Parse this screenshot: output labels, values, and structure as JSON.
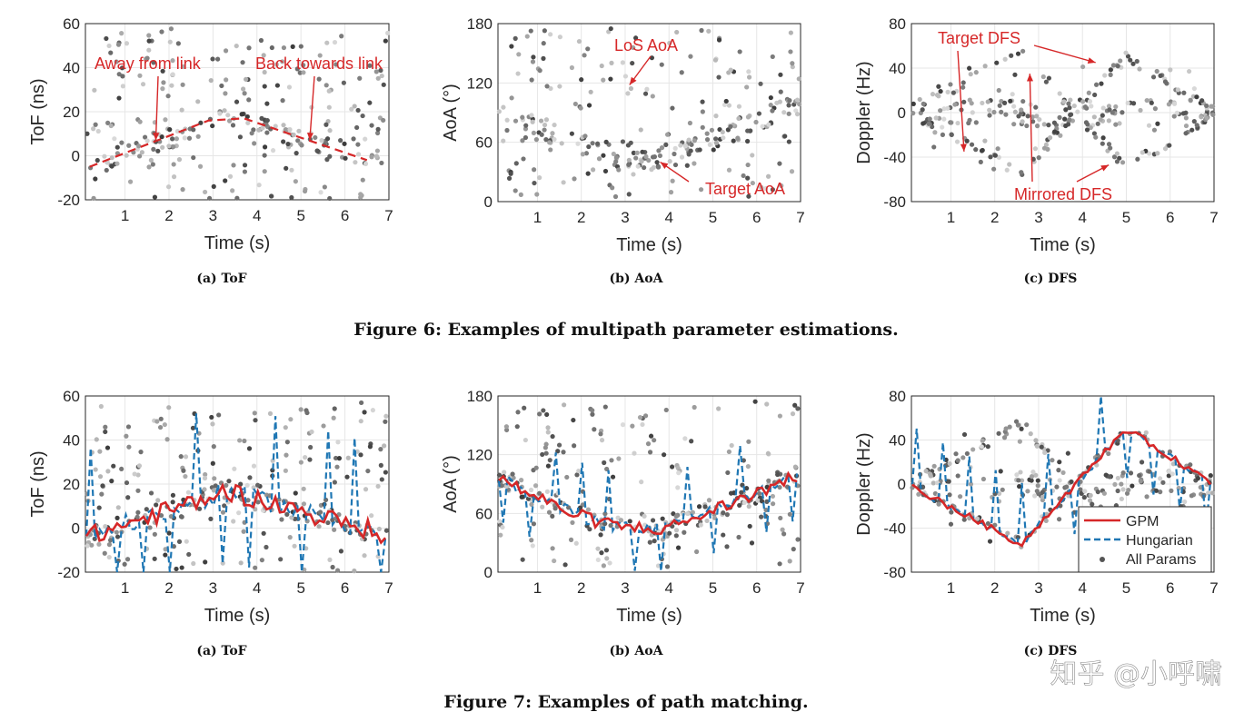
{
  "figures": [
    {
      "caption": "Figure 6: Examples of multipath parameter estimations."
    },
    {
      "caption": "Figure 7: Examples of path matching."
    }
  ],
  "watermark": "知乎 @小呼啸",
  "colors": {
    "annotation": "#d62728",
    "gpm": "#d62728",
    "hungarian": "#1f77b4",
    "dots": "#555555"
  },
  "chart_data": [
    {
      "id": "f6a",
      "type": "scatter",
      "subtitle": "(a) ToF",
      "xlabel": "Time (s)",
      "ylabel": "ToF (ns)",
      "xlim": [
        0.1,
        7
      ],
      "ylim": [
        -20,
        60
      ],
      "xticks": [
        "1",
        "2",
        "3",
        "4",
        "5",
        "6",
        "7"
      ],
      "yticks": [
        "-20",
        "0",
        "20",
        "40",
        "60"
      ],
      "trend": [
        [
          0.2,
          -5
        ],
        [
          2.9,
          16
        ],
        [
          3.7,
          17
        ],
        [
          6.5,
          -2
        ]
      ],
      "annotations": [
        {
          "text": "Away from link",
          "arrow_to": [
            1.7,
            7
          ]
        },
        {
          "text": "Back towards link",
          "arrow_to": [
            5.2,
            7
          ]
        }
      ]
    },
    {
      "id": "f6b",
      "type": "scatter",
      "subtitle": "(b) AoA",
      "xlabel": "Time (s)",
      "ylabel": "AoA (°)",
      "xlim": [
        0.1,
        7
      ],
      "ylim": [
        0,
        180
      ],
      "xticks": [
        "1",
        "2",
        "3",
        "4",
        "5",
        "6",
        "7"
      ],
      "yticks": [
        "0",
        "60",
        "120",
        "180"
      ],
      "annotations": [
        {
          "text": "LoS AoA",
          "arrow_to": [
            3.1,
            118
          ]
        },
        {
          "text": "Target AoA",
          "arrow_to": [
            3.8,
            40
          ]
        }
      ]
    },
    {
      "id": "f6c",
      "type": "scatter",
      "subtitle": "(c) DFS",
      "xlabel": "Time (s)",
      "ylabel": "Doppler (Hz)",
      "xlim": [
        0.1,
        7
      ],
      "ylim": [
        -80,
        80
      ],
      "xticks": [
        "1",
        "2",
        "3",
        "4",
        "5",
        "6",
        "7"
      ],
      "yticks": [
        "-80",
        "-40",
        "0",
        "40",
        "80"
      ],
      "annotations": [
        {
          "text": "Target DFS",
          "arrow_to": [
            1.3,
            -35
          ]
        },
        {
          "text": "Target DFS",
          "arrow_to": [
            4.3,
            45
          ]
        },
        {
          "text": "Mirrored DFS",
          "arrow_to": [
            2.8,
            35
          ]
        },
        {
          "text": "Mirrored DFS",
          "arrow_to": [
            4.6,
            -47
          ]
        }
      ]
    },
    {
      "id": "f7a",
      "type": "line",
      "subtitle": "(a) ToF",
      "xlabel": "Time (s)",
      "ylabel": "ToF (ns)",
      "xlim": [
        0.1,
        7
      ],
      "ylim": [
        -20,
        60
      ],
      "xticks": [
        "1",
        "2",
        "3",
        "4",
        "5",
        "6",
        "7"
      ],
      "yticks": [
        "-20",
        "0",
        "20",
        "40",
        "60"
      ]
    },
    {
      "id": "f7b",
      "type": "line",
      "subtitle": "(b) AoA",
      "xlabel": "Time (s)",
      "ylabel": "AoA (°)",
      "xlim": [
        0.1,
        7
      ],
      "ylim": [
        0,
        180
      ],
      "xticks": [
        "1",
        "2",
        "3",
        "4",
        "5",
        "6",
        "7"
      ],
      "yticks": [
        "0",
        "60",
        "120",
        "180"
      ]
    },
    {
      "id": "f7c",
      "type": "line",
      "subtitle": "(c) DFS",
      "xlabel": "Time (s)",
      "ylabel": "Doppler (Hz)",
      "xlim": [
        0.1,
        7
      ],
      "ylim": [
        -80,
        80
      ],
      "xticks": [
        "1",
        "2",
        "3",
        "4",
        "5",
        "6",
        "7"
      ],
      "yticks": [
        "-80",
        "-40",
        "0",
        "40",
        "80"
      ],
      "legend": {
        "position": "bottom-right",
        "entries": [
          "GPM",
          "Hungarian",
          "All Params"
        ]
      }
    }
  ]
}
